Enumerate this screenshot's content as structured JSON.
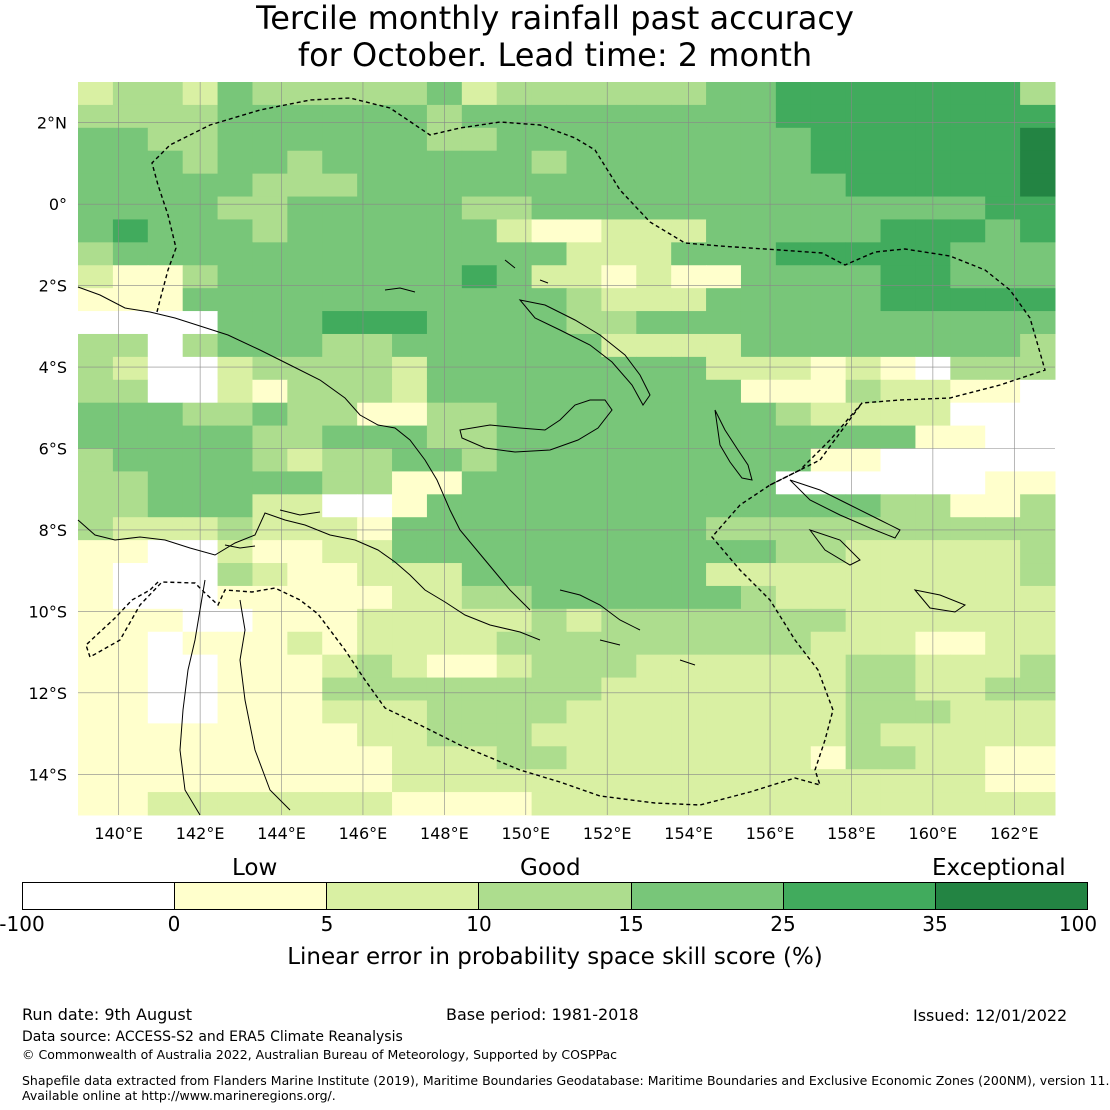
{
  "title_line1": "Tercile monthly rainfall past accuracy",
  "title_line2": "for October. Lead time: 2 month",
  "map": {
    "lon_range": [
      139,
      163
    ],
    "lat_range": [
      -15,
      3
    ],
    "lat_ticks": [
      {
        "value": 2,
        "label": "2°N"
      },
      {
        "value": 0,
        "label": "0°"
      },
      {
        "value": -2,
        "label": "2°S"
      },
      {
        "value": -4,
        "label": "4°S"
      },
      {
        "value": -6,
        "label": "6°S"
      },
      {
        "value": -8,
        "label": "8°S"
      },
      {
        "value": -10,
        "label": "10°S"
      },
      {
        "value": -12,
        "label": "12°S"
      },
      {
        "value": -14,
        "label": "14°S"
      }
    ],
    "lon_ticks": [
      {
        "value": 140,
        "label": "140°E"
      },
      {
        "value": 142,
        "label": "142°E"
      },
      {
        "value": 144,
        "label": "144°E"
      },
      {
        "value": 146,
        "label": "146°E"
      },
      {
        "value": 148,
        "label": "148°E"
      },
      {
        "value": 150,
        "label": "150°E"
      },
      {
        "value": 152,
        "label": "152°E"
      },
      {
        "value": 154,
        "label": "154°E"
      },
      {
        "value": 156,
        "label": "156°E"
      },
      {
        "value": 158,
        "label": "158°E"
      },
      {
        "value": 160,
        "label": "160°E"
      },
      {
        "value": 162,
        "label": "162°E"
      }
    ],
    "colors": [
      "#ffffff",
      "#ffffcc",
      "#d9f0a3",
      "#addd8e",
      "#78c679",
      "#41ab5d",
      "#238443"
    ],
    "skill_grid": [
      "2332433333423333334455555553",
      "3333444444344444444455555555",
      "4433444444334444444445555556",
      "4443443444444344444445555556",
      "4444433344444444444444555556",
      "4444334444433444444444444455",
      "4544434444442112224444455545",
      "3444444444444422244455555444",
      "2113444444454221211444455444",
      "1114444444444432224444455555",
      "0000444555444433444444444444",
      "3303444334444442222444444443",
      "3200233332444444442221210333",
      "3300213332444444444111322110",
      "4443343311334444444432222000",
      "4444433444334444444444441100",
      "3444432334434444444441100000",
      "3344444331144444444400000011",
      "3344422001444444444444433113",
      "3222322214444444443333333333",
      "1100211224444444444433222223",
      "1000321122244444442222222223",
      "1000111112233444444322222222",
      "1110011122222323333333222222",
      "1101112122223333333332221122",
      "1100111232112333222222332223",
      "1100111333333332222222332233",
      "1100111222333322222222333222",
      "1111111122333222222222322222",
      "1111111112223322222221332211",
      "1111111112222222222222222211",
      "1122222221111222222222222222"
    ]
  },
  "colorbar": {
    "category_labels": [
      "Low",
      "Good",
      "Exceptional"
    ],
    "tick_labels": [
      "-100",
      "0",
      "5",
      "10",
      "15",
      "25",
      "35",
      "100"
    ],
    "label": "Linear error in probability space skill score (%)"
  },
  "footer": {
    "run_date": "Run date: 9th August",
    "base_period": "Base period: 1981-2018",
    "issued": "Issued: 12/01/2022",
    "data_source": "Data source: ACCESS-S2 and ERA5 Climate Reanalysis",
    "copyright": "© Commonwealth of Australia 2022, Australian Bureau of Meteorology, Supported by COSPPac",
    "shapefile_line1": "Shapefile data extracted from Flanders Marine Institute (2019), Maritime Boundaries Geodatabase: Maritime Boundaries and Exclusive Economic Zones (200NM), version 11.",
    "shapefile_line2": "Available online at http://www.marineregions.org/."
  }
}
